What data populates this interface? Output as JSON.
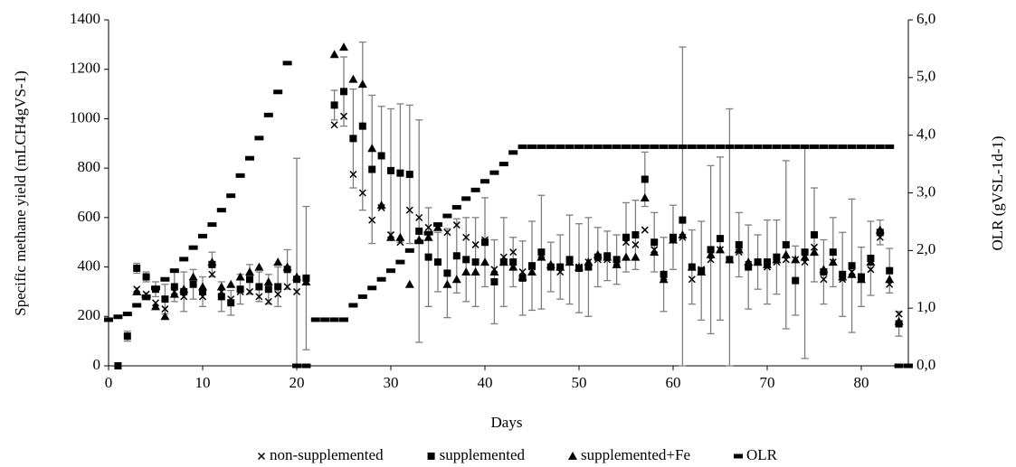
{
  "chart_data": {
    "type": "scatter",
    "x_label": "Days",
    "y_label": "Specific methane yield (mLCH4gVS-1)",
    "y2_label": "OLR (gVSL-1d-1)",
    "xlim": [
      0,
      85
    ],
    "xticks": [
      0,
      10,
      20,
      30,
      40,
      50,
      60,
      70,
      80
    ],
    "ylim": [
      0,
      1400
    ],
    "yticks": [
      0,
      200,
      400,
      600,
      800,
      1000,
      1200,
      1400
    ],
    "y2lim": [
      0,
      6
    ],
    "y2ticks": [
      {
        "value": 0,
        "label": "0,0"
      },
      {
        "value": 1,
        "label": "1,0"
      },
      {
        "value": 2,
        "label": "2,0"
      },
      {
        "value": 3,
        "label": "3,0"
      },
      {
        "value": 4,
        "label": "4,0"
      },
      {
        "value": 5,
        "label": "5,0"
      },
      {
        "value": 6,
        "label": "6,0"
      }
    ],
    "legend": "bottom",
    "series": [
      {
        "name": "non-supplemented",
        "color": "#000000",
        "marker": "x",
        "x": [
          3,
          4,
          5,
          6,
          7,
          8,
          9,
          10,
          11,
          12,
          13,
          14,
          15,
          16,
          17,
          18,
          19,
          20,
          21,
          24,
          25,
          26,
          27,
          28,
          29,
          30,
          31,
          32,
          33,
          34,
          35,
          36,
          37,
          38,
          39,
          40,
          41,
          42,
          43,
          44,
          45,
          46,
          47,
          48,
          49,
          50,
          51,
          52,
          53,
          54,
          55,
          56,
          57,
          58,
          59,
          60,
          61,
          62,
          63,
          64,
          65,
          66,
          67,
          68,
          69,
          70,
          71,
          72,
          73,
          74,
          75,
          76,
          77,
          78,
          79,
          80,
          81,
          82,
          83,
          84
        ],
        "values": [
          310,
          290,
          255,
          230,
          300,
          280,
          330,
          280,
          370,
          300,
          270,
          300,
          300,
          280,
          260,
          290,
          320,
          300,
          340,
          975,
          1010,
          775,
          700,
          590,
          640,
          530,
          500,
          630,
          600,
          560,
          560,
          540,
          570,
          520,
          490,
          510,
          390,
          440,
          460,
          380,
          400,
          450,
          400,
          380,
          420,
          400,
          420,
          430,
          430,
          420,
          500,
          490,
          550,
          470,
          360,
          510,
          520,
          350,
          390,
          430,
          470,
          430,
          460,
          410,
          420,
          400,
          420,
          430,
          430,
          420,
          480,
          350,
          420,
          350,
          380,
          350,
          390,
          520,
          330,
          210
        ]
      },
      {
        "name": "supplemented",
        "color": "#000000",
        "marker": "square",
        "x": [
          1,
          2,
          3,
          4,
          5,
          6,
          7,
          8,
          9,
          10,
          11,
          12,
          13,
          14,
          15,
          16,
          17,
          18,
          19,
          20,
          21,
          24,
          25,
          26,
          27,
          28,
          29,
          30,
          31,
          32,
          33,
          34,
          35,
          36,
          37,
          38,
          39,
          40,
          41,
          42,
          43,
          44,
          45,
          46,
          47,
          48,
          49,
          50,
          51,
          52,
          53,
          54,
          55,
          56,
          57,
          58,
          59,
          60,
          61,
          62,
          63,
          64,
          65,
          66,
          67,
          68,
          69,
          70,
          71,
          72,
          73,
          74,
          75,
          76,
          77,
          78,
          79,
          80,
          81,
          82,
          83,
          84
        ],
        "values": [
          0,
          120,
          395,
          360,
          310,
          270,
          320,
          300,
          330,
          300,
          410,
          280,
          255,
          310,
          350,
          320,
          310,
          320,
          390,
          350,
          355,
          1055,
          1110,
          920,
          970,
          795,
          850,
          790,
          780,
          775,
          545,
          440,
          420,
          375,
          445,
          430,
          420,
          500,
          340,
          420,
          420,
          355,
          405,
          460,
          400,
          400,
          430,
          395,
          400,
          440,
          445,
          430,
          520,
          530,
          755,
          500,
          370,
          520,
          590,
          400,
          385,
          470,
          515,
          430,
          490,
          400,
          420,
          420,
          440,
          490,
          345,
          460,
          530,
          380,
          460,
          370,
          405,
          360,
          435,
          540,
          385,
          170
        ],
        "errors": [
          10,
          20,
          20,
          20,
          30,
          60,
          60,
          80,
          60,
          60,
          50,
          60,
          50,
          60,
          60,
          60,
          60,
          80,
          80,
          490,
          290,
          60,
          140,
          200,
          340,
          300,
          200,
          250,
          280,
          280,
          450,
          200,
          120,
          180,
          150,
          170,
          180,
          180,
          170,
          180,
          100,
          150,
          180,
          230,
          100,
          130,
          180,
          180,
          200,
          120,
          100,
          100,
          140,
          140,
          110,
          120,
          150,
          130,
          700,
          150,
          200,
          340,
          330,
          610,
          130,
          170,
          110,
          170,
          150,
          340,
          140,
          430,
          190,
          130,
          140,
          170,
          270,
          120,
          150,
          50,
          90,
          50
        ]
      },
      {
        "name": "supplemented+Fe",
        "color": "#000000",
        "marker": "triangle",
        "x": [
          3,
          4,
          5,
          6,
          7,
          8,
          9,
          10,
          11,
          12,
          13,
          14,
          15,
          16,
          17,
          18,
          19,
          20,
          21,
          24,
          25,
          26,
          27,
          28,
          29,
          30,
          31,
          32,
          33,
          34,
          35,
          36,
          37,
          38,
          39,
          40,
          41,
          42,
          43,
          44,
          45,
          46,
          47,
          48,
          49,
          50,
          51,
          52,
          53,
          54,
          55,
          56,
          57,
          58,
          59,
          60,
          61,
          62,
          63,
          64,
          65,
          66,
          67,
          68,
          69,
          70,
          71,
          72,
          73,
          74,
          75,
          76,
          77,
          78,
          79,
          80,
          81,
          82,
          83,
          84
        ],
        "values": [
          300,
          280,
          240,
          200,
          290,
          310,
          360,
          320,
          420,
          320,
          330,
          360,
          380,
          400,
          340,
          420,
          400,
          360,
          340,
          1260,
          1290,
          1160,
          1140,
          880,
          650,
          520,
          520,
          330,
          510,
          520,
          560,
          330,
          350,
          380,
          380,
          420,
          380,
          420,
          400,
          360,
          380,
          440,
          410,
          400,
          420,
          400,
          420,
          450,
          440,
          410,
          440,
          440,
          680,
          460,
          350,
          510,
          530,
          400,
          380,
          450,
          470,
          430,
          470,
          420,
          420,
          410,
          430,
          450,
          430,
          440,
          460,
          390,
          420,
          360,
          370,
          350,
          420,
          550,
          350,
          180
        ]
      },
      {
        "name": "OLR",
        "color": "#000000",
        "marker": "dash",
        "axis": "y2",
        "x": [
          0,
          1,
          2,
          3,
          4,
          5,
          6,
          7,
          8,
          9,
          10,
          11,
          12,
          13,
          14,
          15,
          16,
          17,
          18,
          19,
          20,
          21,
          22,
          23,
          24,
          25,
          26,
          27,
          28,
          29,
          30,
          31,
          32,
          33,
          34,
          35,
          36,
          37,
          38,
          39,
          40,
          41,
          42,
          43,
          44,
          45,
          46,
          47,
          48,
          49,
          50,
          51,
          52,
          53,
          54,
          55,
          56,
          57,
          58,
          59,
          60,
          61,
          62,
          63,
          64,
          65,
          66,
          67,
          68,
          69,
          70,
          71,
          72,
          73,
          74,
          75,
          76,
          77,
          78,
          79,
          80,
          81,
          82,
          83,
          84,
          85
        ],
        "values": [
          0.8,
          0.85,
          0.9,
          1.05,
          1.2,
          1.35,
          1.5,
          1.65,
          1.85,
          2.05,
          2.25,
          2.45,
          2.7,
          2.95,
          3.3,
          3.6,
          3.95,
          4.35,
          4.75,
          5.25,
          0,
          0,
          0.8,
          0.8,
          0.8,
          0.8,
          1.05,
          1.2,
          1.35,
          1.5,
          1.65,
          1.8,
          2.0,
          2.15,
          2.3,
          2.45,
          2.6,
          2.75,
          2.9,
          3.05,
          3.2,
          3.35,
          3.5,
          3.7,
          3.8,
          3.8,
          3.8,
          3.8,
          3.8,
          3.8,
          3.8,
          3.8,
          3.8,
          3.8,
          3.8,
          3.8,
          3.8,
          3.8,
          3.8,
          3.8,
          3.8,
          3.8,
          3.8,
          3.8,
          3.8,
          3.8,
          3.8,
          3.8,
          3.8,
          3.8,
          3.8,
          3.8,
          3.8,
          3.8,
          3.8,
          3.8,
          3.8,
          3.8,
          3.8,
          3.8,
          3.8,
          3.8,
          3.8,
          3.8,
          0,
          0
        ]
      }
    ]
  }
}
